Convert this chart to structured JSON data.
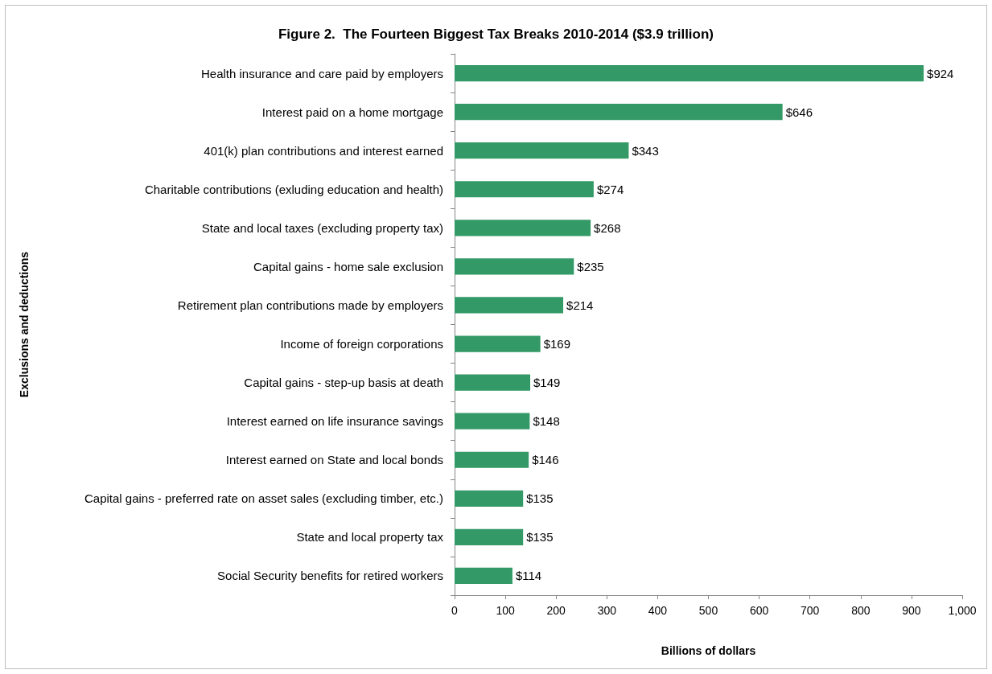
{
  "chart_data": {
    "type": "bar",
    "orientation": "horizontal",
    "title": "Figure 2.  The Fourteen Biggest Tax Breaks 2010-2014 ($3.9 trillion)",
    "xlabel": "Billions of dollars",
    "ylabel": "Exclusions and deductions",
    "categories": [
      "Health insurance and care paid by employers",
      "Interest paid on a home mortgage",
      "401(k) plan contributions and interest earned",
      "Charitable contributions (exluding education and health)",
      "State and local taxes (excluding property tax)",
      "Capital gains - home sale exclusion",
      "Retirement plan contributions made by employers",
      "Income of foreign corporations",
      "Capital gains - step-up basis at death",
      "Interest earned on life insurance savings",
      "Interest earned on State and local bonds",
      "Capital gains - preferred rate on asset sales (excluding timber, etc.)",
      "State and local property tax",
      "Social Security benefits for retired workers"
    ],
    "values": [
      924,
      646,
      343,
      274,
      268,
      235,
      214,
      169,
      149,
      148,
      146,
      135,
      135,
      114
    ],
    "value_labels": [
      "$924",
      "$646",
      "$343",
      "$274",
      "$268",
      "$235",
      "$214",
      "$169",
      "$149",
      "$148",
      "$146",
      "$135",
      "$135",
      "$114"
    ],
    "color": "#339966",
    "xlim": [
      0,
      1000
    ],
    "xticks": [
      0,
      100,
      200,
      300,
      400,
      500,
      600,
      700,
      800,
      900,
      {
        "value": 1000,
        "label": "1,000"
      }
    ],
    "grid": false
  }
}
